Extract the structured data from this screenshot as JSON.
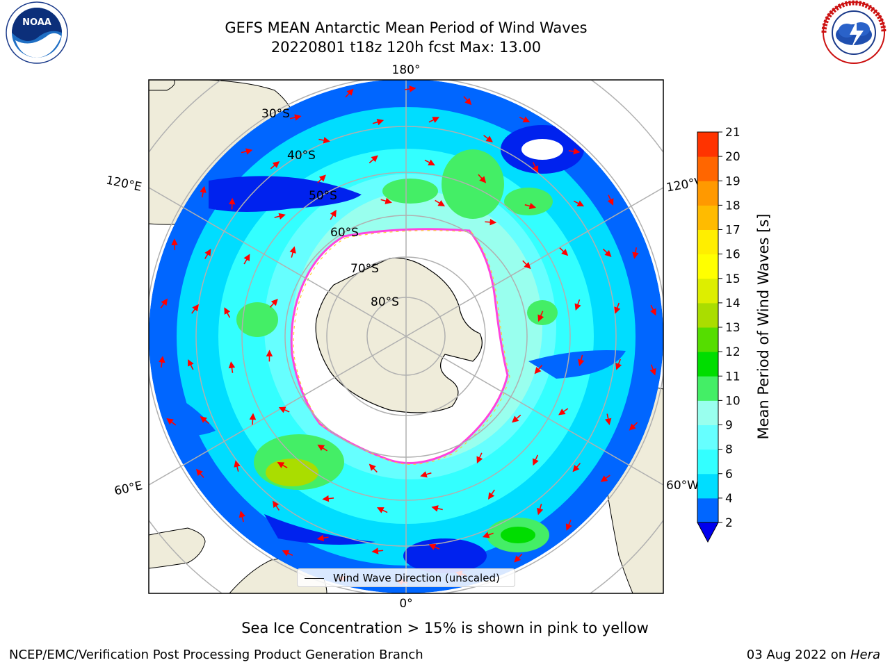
{
  "title": {
    "line1": "GEFS MEAN Antarctic Mean Period of Wind Waves",
    "line2": "20220801 t18z 120h fcst   Max: 13.00"
  },
  "logos": {
    "left": "NOAA",
    "right": "NATIONAL WEATHER SERVICE"
  },
  "map": {
    "projection": "south-polar-stereographic",
    "longitude_labels": {
      "top": "180°",
      "bottom": "0°",
      "left_upper": "120°E",
      "left_lower": "60°E",
      "right_upper": "120°W",
      "right_lower": "60°W"
    },
    "latitude_labels": [
      "30°S",
      "40°S",
      "50°S",
      "60°S",
      "70°S",
      "80°S"
    ],
    "legend_label": "Wind Wave Direction (unscaled)"
  },
  "colorbar": {
    "label": "Mean Period of Wind Waves [s]",
    "ticks": [
      "2",
      "4",
      "6",
      "8",
      "9",
      "10",
      "11",
      "12",
      "13",
      "14",
      "15",
      "16",
      "17",
      "18",
      "19",
      "20",
      "21"
    ],
    "colors": [
      "#0066ff",
      "#00ddff",
      "#33ffff",
      "#66ffff",
      "#99ffee",
      "#44ee66",
      "#00dd00",
      "#55dd00",
      "#aadd00",
      "#ddee00",
      "#ffff00",
      "#ffee00",
      "#ffbb00",
      "#ff9900",
      "#ff6600",
      "#ff3300",
      "#ff0000"
    ],
    "under_color": "#0000ee"
  },
  "colors": {
    "land": "#efecda",
    "ice_edge_pink": "#ff44dd",
    "ice_edge_yellow": "#ffcc33",
    "arrow": "#ff0000",
    "deep_blue": "#0022ee",
    "mid_blue": "#0066ff",
    "cyan": "#00eeff",
    "light_cyan": "#55ffff",
    "green": "#55ee66"
  },
  "footer": {
    "note": "Sea Ice Concentration > 15% is shown in pink to yellow",
    "left": "NCEP/EMC/Verification Post Processing Product Generation Branch",
    "right_date": "03 Aug 2022 on",
    "right_host": "Hera"
  }
}
